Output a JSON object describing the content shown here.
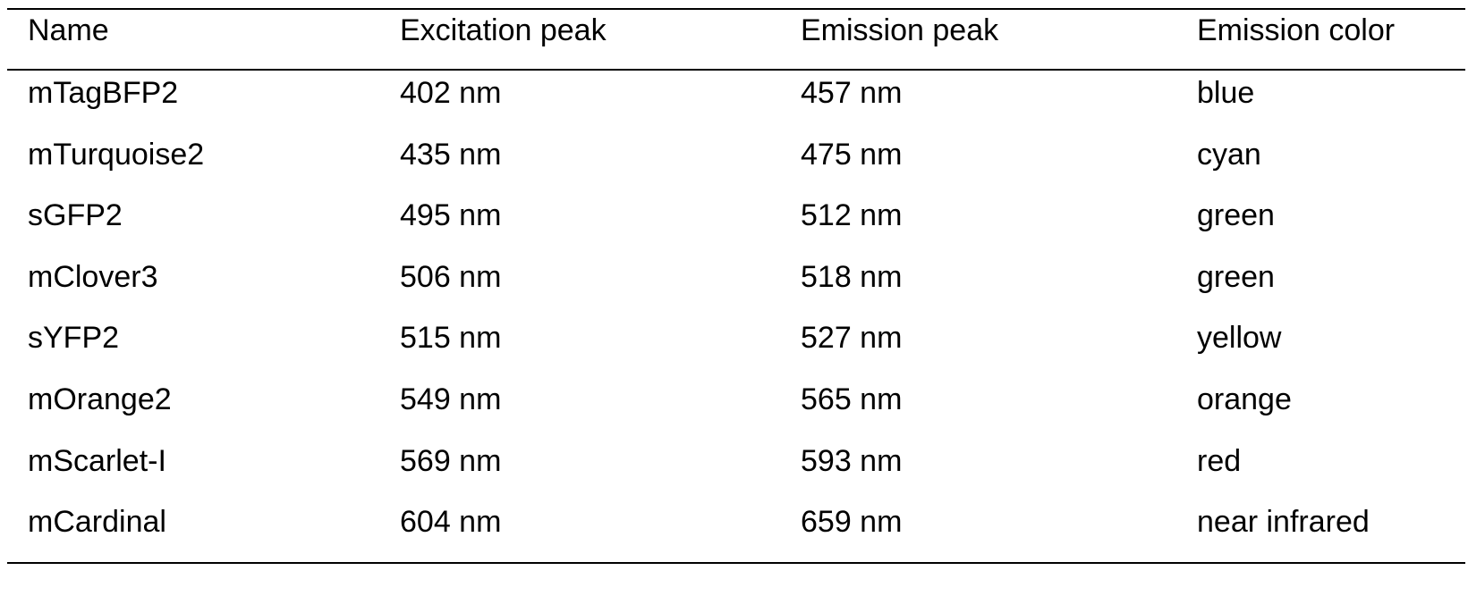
{
  "table": {
    "header": [
      "Name",
      "Excitation peak",
      "Emission peak",
      "Emission color"
    ],
    "rows": [
      [
        "mTagBFP2",
        "402 nm",
        "457 nm",
        "blue"
      ],
      [
        "mTurquoise2",
        "435 nm",
        "475 nm",
        "cyan"
      ],
      [
        "sGFP2",
        "495 nm",
        "512 nm",
        "green"
      ],
      [
        "mClover3",
        "506 nm",
        "518 nm",
        "green"
      ],
      [
        "sYFP2",
        "515 nm",
        "527 nm",
        "yellow"
      ],
      [
        "mOrange2",
        "549 nm",
        "565 nm",
        "orange"
      ],
      [
        "mScarlet-I",
        "569 nm",
        "593 nm",
        "red"
      ],
      [
        "mCardinal",
        "604 nm",
        "659 nm",
        "near infrared"
      ]
    ]
  }
}
